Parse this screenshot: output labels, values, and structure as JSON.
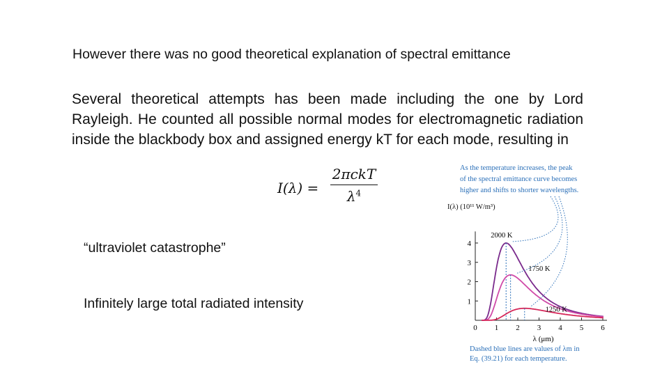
{
  "slide": {
    "title": "However there was no good theoretical explanation of  spectral emittance",
    "paragraph": "Several theoretical attempts has been made including the one by Lord Rayleigh. He counted all possible normal modes for electromagnetic radiation inside the blackbody box and assigned energy kT for each mode, resulting in",
    "formula": {
      "lhs": "I(λ) =",
      "numerator": "2πckT",
      "denominator": "λ",
      "exponent": "4"
    },
    "quote": "“ultraviolet catastrophe”",
    "consequence": "Infinitely large total radiated intensity"
  },
  "chart_data": {
    "type": "line",
    "annotation_top": [
      "As the temperature increases, the peak",
      "of the spectral emittance curve becomes",
      "higher and shifts to shorter wavelengths."
    ],
    "annotation_bottom": [
      "Dashed blue lines are values of λm in",
      "Eq. (39.21) for each temperature."
    ],
    "ylabel": "I(λ) (10¹¹ W/m³)",
    "xlabel": "λ (μm)",
    "x_ticks": [
      "0",
      "1",
      "2",
      "3",
      "4",
      "5",
      "6"
    ],
    "y_ticks": [
      "1",
      "2",
      "3",
      "4"
    ],
    "xlim": [
      0,
      6
    ],
    "ylim": [
      0,
      4.6
    ],
    "series": [
      {
        "name": "2000 K",
        "color": "#7a2a8c",
        "peak_x": 1.45,
        "peak_y": 4.0
      },
      {
        "name": "1750 K",
        "color": "#d04aa8",
        "peak_x": 1.66,
        "peak_y": 2.35
      },
      {
        "name": "1250 K",
        "color": "#d6285a",
        "peak_x": 2.32,
        "peak_y": 0.62
      }
    ],
    "accent_color": "#2a6fb8"
  }
}
